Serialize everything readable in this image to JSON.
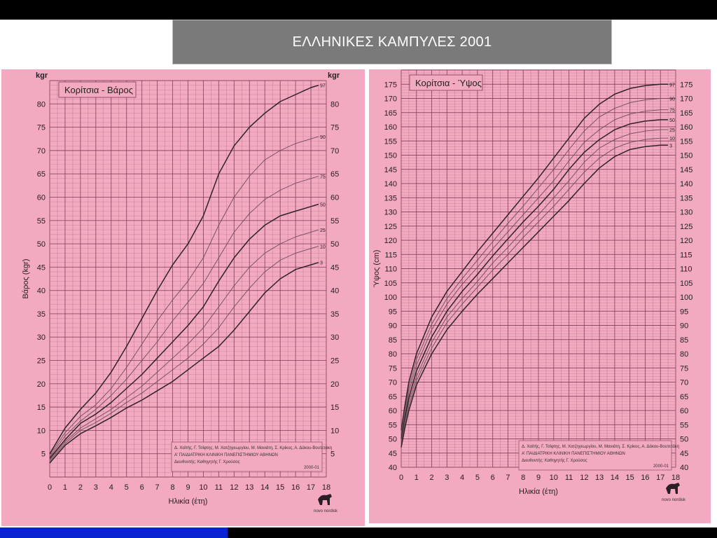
{
  "slide": {
    "title": "ΕΛΛΗΝΙΚΕΣ ΚΑΜΠΥΛΕΣ  2001"
  },
  "colors": {
    "paper": "#f3a9c0",
    "grid": "#7b3c55",
    "curve_major": "#2e2228",
    "curve_minor": "#6c4d5a",
    "title_box": "#7a7a7a",
    "blue_bar": "#0a23d0"
  },
  "chart_data": [
    {
      "type": "line",
      "title": "Κορίτσια - Βάρος",
      "xlabel": "Ηλικία (έτη)",
      "ylabel": "Βάρος (kgr)",
      "unit_label": "kgr",
      "xlim": [
        0,
        18
      ],
      "ylim": [
        0,
        85
      ],
      "xticks": [
        "0",
        "1",
        "2",
        "3",
        "4",
        "5",
        "6",
        "7",
        "8",
        "9",
        "10",
        "11",
        "12",
        "13",
        "14",
        "15",
        "16",
        "17",
        "18"
      ],
      "yticks": [
        "5",
        "10",
        "15",
        "20",
        "25",
        "30",
        "35",
        "40",
        "45",
        "50",
        "55",
        "60",
        "65",
        "70",
        "75",
        "80"
      ],
      "grid": true,
      "x": [
        0,
        1,
        2,
        3,
        4,
        5,
        6,
        7,
        8,
        9,
        10,
        11,
        12,
        13,
        14,
        15,
        16,
        17,
        17.5
      ],
      "series": [
        {
          "name": "97",
          "major": true,
          "values": [
            5,
            10.5,
            14.5,
            18,
            22.5,
            28,
            34,
            40,
            45.5,
            50,
            56,
            65,
            71,
            75,
            78,
            80.5,
            82,
            83.5,
            84
          ]
        },
        {
          "name": "90",
          "major": false,
          "values": [
            4.7,
            9.5,
            13,
            15.5,
            19,
            23.5,
            28.5,
            33.5,
            38,
            42,
            47,
            54,
            60,
            64.5,
            68,
            70,
            71.5,
            72.5,
            73
          ]
        },
        {
          "name": "75",
          "major": false,
          "values": [
            4.3,
            8.8,
            12,
            14.5,
            17.5,
            21,
            25,
            29,
            33.5,
            37.5,
            41.5,
            47,
            52.5,
            56.5,
            59.5,
            61.5,
            63,
            64,
            64.5
          ]
        },
        {
          "name": "50",
          "major": true,
          "values": [
            4,
            8,
            11.5,
            13.5,
            16,
            19,
            22,
            25.5,
            29,
            32.5,
            36.5,
            42,
            47,
            51,
            54,
            56,
            57,
            58,
            58.5
          ]
        },
        {
          "name": "25",
          "major": false,
          "values": [
            3.7,
            7.6,
            10.5,
            12.5,
            14.5,
            17,
            19.5,
            22.5,
            25.5,
            28.5,
            32,
            36.5,
            41,
            45,
            48,
            50,
            51.5,
            52.5,
            53
          ]
        },
        {
          "name": "10",
          "major": false,
          "values": [
            3.4,
            7.2,
            10,
            11.7,
            13.7,
            16,
            18,
            20.5,
            23,
            25.5,
            28.5,
            32,
            36.5,
            40.5,
            44,
            46.5,
            48,
            49,
            49.5
          ]
        },
        {
          "name": "3",
          "major": true,
          "values": [
            3,
            6.8,
            9.3,
            11,
            12.8,
            14.8,
            16.5,
            18.5,
            20.5,
            23,
            25.5,
            28,
            31.5,
            35.5,
            39.5,
            42.5,
            44.5,
            45.5,
            46
          ]
        }
      ],
      "credit": [
        "Δ. Χαϊτής, Γ. Τσίφτης, Μ. Χατζηγεωργίου, Μ. Μανιάτη, Σ. Κρίκος, Α. Δάκου-Βουτετάκη",
        "Α' ΠΑΙΔΙΑΤΡΙΚΗ ΚΛΙΝΙΚΗ ΠΑΝΕΠΙΣΤΗΜΙΟΥ ΑΘΗΝΩΝ",
        "Διευθυντής: Καθηγητής Γ. Χρούσος"
      ],
      "credit_code": "2000-01",
      "brand": "novo nordisk"
    },
    {
      "type": "line",
      "title": "Κορίτσια - Ύψος",
      "xlabel": "Ηλικία (έτη)",
      "ylabel": "Ύψος (cm)",
      "unit_label": "cm",
      "xlim": [
        0,
        18
      ],
      "ylim": [
        40,
        180
      ],
      "xticks": [
        "0",
        "1",
        "2",
        "3",
        "4",
        "5",
        "6",
        "7",
        "8",
        "9",
        "10",
        "11",
        "12",
        "13",
        "14",
        "15",
        "16",
        "17",
        "18"
      ],
      "yticks": [
        "40",
        "45",
        "50",
        "55",
        "60",
        "65",
        "70",
        "75",
        "80",
        "85",
        "90",
        "95",
        "100",
        "105",
        "110",
        "115",
        "120",
        "125",
        "130",
        "135",
        "140",
        "145",
        "150",
        "155",
        "160",
        "165",
        "170",
        "175"
      ],
      "grid": true,
      "x": [
        0,
        0.25,
        0.5,
        1,
        2,
        3,
        4,
        5,
        6,
        7,
        8,
        9,
        10,
        11,
        12,
        13,
        14,
        15,
        16,
        17,
        17.5
      ],
      "series": [
        {
          "name": "97",
          "major": true,
          "values": [
            53,
            62,
            70,
            80,
            93,
            102,
            109,
            116,
            122.5,
            129,
            135.5,
            142,
            149,
            156,
            163,
            168,
            171.5,
            173.5,
            174.5,
            175,
            175
          ]
        },
        {
          "name": "90",
          "major": false,
          "values": [
            52,
            60.5,
            68,
            78,
            90.5,
            99.5,
            106.5,
            113,
            119.5,
            126,
            132,
            138.5,
            145,
            152,
            158.5,
            163.5,
            166.5,
            168.5,
            169.5,
            170,
            170
          ]
        },
        {
          "name": "75",
          "major": false,
          "values": [
            51,
            59,
            66.5,
            76,
            88.5,
            97.5,
            104.5,
            110.5,
            117,
            123,
            129,
            135,
            141,
            148,
            154.5,
            159,
            162.5,
            164.5,
            165.5,
            166,
            166
          ]
        },
        {
          "name": "50",
          "major": true,
          "values": [
            50,
            57.5,
            64.5,
            74,
            86,
            95,
            102,
            108,
            114.5,
            120.5,
            126.5,
            132,
            138,
            145,
            151,
            155.5,
            159,
            161,
            162,
            162.5,
            162.5
          ]
        },
        {
          "name": "25",
          "major": false,
          "values": [
            49,
            56.5,
            63,
            72,
            84,
            93,
            99.5,
            105.5,
            112,
            117.5,
            123.5,
            129,
            135,
            141,
            147.5,
            152.5,
            155.5,
            157.5,
            158.5,
            159,
            159
          ]
        },
        {
          "name": "10",
          "major": false,
          "values": [
            48,
            55.5,
            61.5,
            70.5,
            82,
            91,
            97.5,
            103.5,
            109.5,
            115,
            121,
            126.5,
            132,
            138,
            144,
            149,
            152.5,
            154.5,
            155.5,
            156,
            156
          ]
        },
        {
          "name": "3",
          "major": true,
          "values": [
            47,
            54,
            60,
            69,
            80,
            88.5,
            95,
            101,
            106.5,
            112,
            117.5,
            123,
            128.5,
            134,
            140,
            145.5,
            149.5,
            152,
            153,
            153.5,
            153.5
          ]
        }
      ],
      "credit": [
        "Δ. Χαϊτής, Γ. Τσίφτης, Μ. Χατζηγεωργίου, Μ. Μανιάτη, Σ. Κρίκος, Α. Δάκου-Βουτετάκη",
        "Α' ΠΑΙΔΙΑΤΡΙΚΗ ΚΛΙΝΙΚΗ ΠΑΝΕΠΙΣΤΗΜΙΟΥ ΑΘΗΝΩΝ",
        "Διευθυντής: Καθηγητής Γ. Χρούσος"
      ],
      "credit_code": "2000-01",
      "brand": "novo nordisk"
    }
  ]
}
